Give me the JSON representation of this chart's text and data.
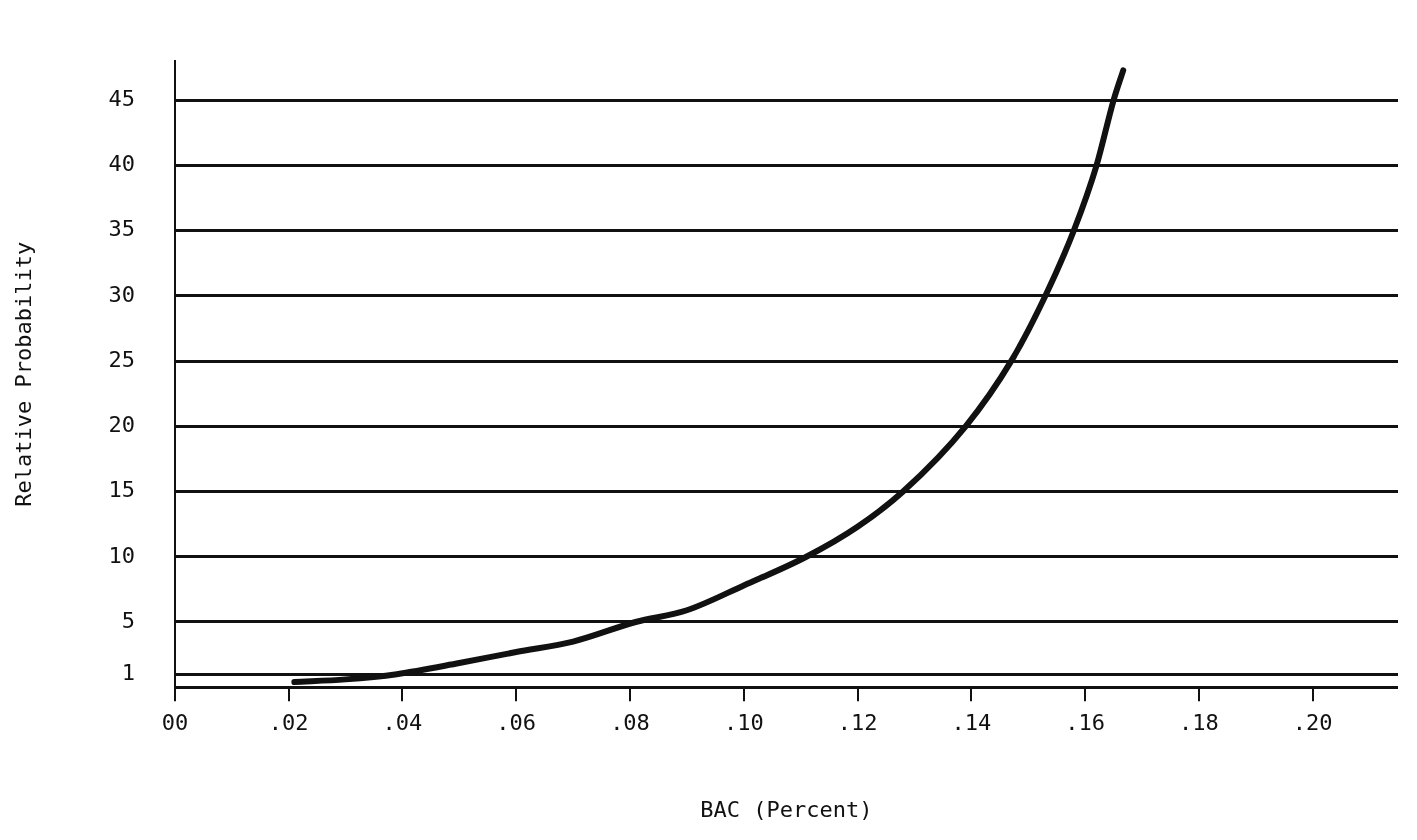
{
  "chart_data": {
    "type": "line",
    "xlabel": "BAC (Percent)",
    "ylabel": "Relative Probability",
    "x": [
      0.021,
      0.03,
      0.039,
      0.05,
      0.06,
      0.07,
      0.081,
      0.09,
      0.1,
      0.111,
      0.12,
      0.128,
      0.139,
      0.147,
      0.153,
      0.158,
      0.162,
      0.165,
      0.1667
    ],
    "series": [
      {
        "color": "#111111",
        "values": [
          0.4,
          0.6,
          1,
          1.85,
          2.7,
          3.5,
          5,
          5.9,
          7.8,
          10,
          12.3,
          15,
          20,
          25,
          30,
          35,
          40,
          45,
          47.3
        ]
      }
    ],
    "xlim": [
      0,
      0.215
    ],
    "xticks": [
      {
        "value": 0,
        "label": "00"
      },
      {
        "value": 0.02,
        "label": ".02"
      },
      {
        "value": 0.04,
        "label": ".04"
      },
      {
        "value": 0.06,
        "label": ".06"
      },
      {
        "value": 0.08,
        "label": ".08"
      },
      {
        "value": 0.1,
        "label": ".10"
      },
      {
        "value": 0.12,
        "label": ".12"
      },
      {
        "value": 0.14,
        "label": ".14"
      },
      {
        "value": 0.16,
        "label": ".16"
      },
      {
        "value": 0.18,
        "label": ".18"
      },
      {
        "value": 0.2,
        "label": ".20"
      }
    ],
    "ylim": [
      0,
      48
    ],
    "yticks": [
      {
        "value": 0,
        "label": null
      },
      1,
      5,
      10,
      15,
      20,
      25,
      30,
      35,
      40,
      45
    ],
    "grid": "y",
    "marker": "none",
    "line_style": "solid",
    "legend": false
  }
}
